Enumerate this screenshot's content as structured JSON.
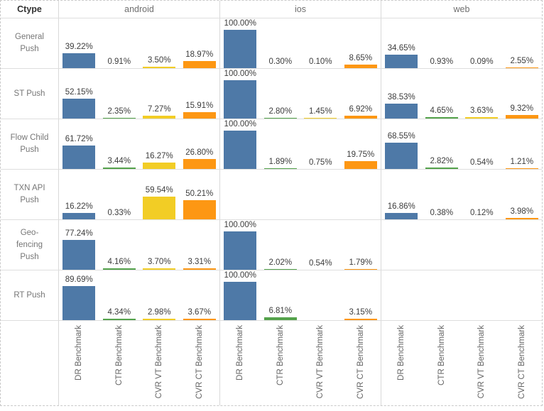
{
  "header": {
    "ctype_label": "Ctype",
    "platforms": [
      "android",
      "ios",
      "web"
    ]
  },
  "chart_data": {
    "type": "bar",
    "layout": "small-multiples crosstab: rows = Ctype, columns = platform, 4 benchmark bars per cell",
    "unit": "%",
    "ylim": [
      0,
      100
    ],
    "benchmarks": [
      "DR Benchmark",
      "CTR Benchmark",
      "CVR VT Benchmark",
      "CVR CT Benchmark"
    ],
    "colors": {
      "DR Benchmark": "#4E79A7",
      "CTR Benchmark": "#54A24B",
      "CVR VT Benchmark": "#F2CD25",
      "CVR CT Benchmark": "#FD9713"
    },
    "rows": [
      {
        "ctype": "General Push",
        "platforms": {
          "android": [
            39.22,
            0.91,
            3.5,
            18.97
          ],
          "ios": [
            100.0,
            0.3,
            0.1,
            8.65
          ],
          "web": [
            34.65,
            0.93,
            0.09,
            2.55
          ]
        }
      },
      {
        "ctype": "ST Push",
        "platforms": {
          "android": [
            52.15,
            2.35,
            7.27,
            15.91
          ],
          "ios": [
            100.0,
            2.8,
            1.45,
            6.92
          ],
          "web": [
            38.53,
            4.65,
            3.63,
            9.32
          ]
        }
      },
      {
        "ctype": "Flow Child Push",
        "platforms": {
          "android": [
            61.72,
            3.44,
            16.27,
            26.8
          ],
          "ios": [
            100.0,
            1.89,
            0.75,
            19.75
          ],
          "web": [
            68.55,
            2.82,
            0.54,
            1.21
          ]
        }
      },
      {
        "ctype": "TXN API Push",
        "platforms": {
          "android": [
            16.22,
            0.33,
            59.54,
            50.21
          ],
          "ios": [
            null,
            null,
            null,
            null
          ],
          "web": [
            16.86,
            0.38,
            0.12,
            3.98
          ]
        }
      },
      {
        "ctype": "Geo-fencing Push",
        "platforms": {
          "android": [
            77.24,
            4.16,
            3.7,
            3.31
          ],
          "ios": [
            100.0,
            2.02,
            0.54,
            1.79
          ],
          "web": [
            null,
            null,
            null,
            null
          ]
        }
      },
      {
        "ctype": "RT Push",
        "platforms": {
          "android": [
            89.69,
            4.34,
            2.98,
            3.67
          ],
          "ios": [
            100.0,
            6.81,
            null,
            3.15
          ],
          "web": [
            null,
            null,
            null,
            null
          ]
        }
      }
    ]
  }
}
